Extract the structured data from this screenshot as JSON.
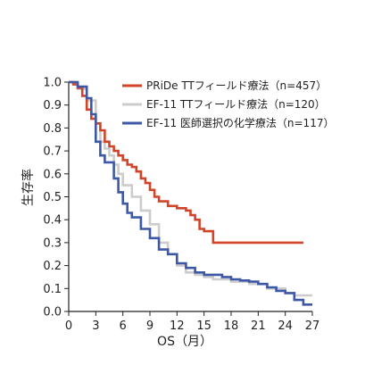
{
  "chart_data": {
    "type": "line",
    "xlabel": "OS（月）",
    "ylabel": "生存率",
    "xlim": [
      0,
      27
    ],
    "ylim": [
      0,
      1.0
    ],
    "x_ticks": [
      "0",
      "3",
      "6",
      "9",
      "12",
      "15",
      "18",
      "21",
      "24",
      "27"
    ],
    "y_ticks": [
      "0.0",
      "0.1",
      "0.2",
      "0.3",
      "0.4",
      "0.5",
      "0.6",
      "0.7",
      "0.8",
      "0.9",
      "1.0"
    ],
    "grid": false,
    "legend_position": "top-right",
    "series": [
      {
        "name": "PRiDe TTフィールド療法（n=457）",
        "color": "#d2442a",
        "points": [
          [
            0,
            1.0
          ],
          [
            0.5,
            0.99
          ],
          [
            1,
            0.975
          ],
          [
            1.5,
            0.94
          ],
          [
            2,
            0.88
          ],
          [
            2.5,
            0.84
          ],
          [
            3,
            0.82
          ],
          [
            3.5,
            0.79
          ],
          [
            4,
            0.74
          ],
          [
            4.5,
            0.72
          ],
          [
            5,
            0.7
          ],
          [
            5.5,
            0.68
          ],
          [
            6,
            0.66
          ],
          [
            6.5,
            0.64
          ],
          [
            7,
            0.63
          ],
          [
            7.5,
            0.61
          ],
          [
            8,
            0.58
          ],
          [
            8.5,
            0.56
          ],
          [
            9,
            0.53
          ],
          [
            9.5,
            0.5
          ],
          [
            10,
            0.48
          ],
          [
            11,
            0.46
          ],
          [
            12,
            0.45
          ],
          [
            13,
            0.44
          ],
          [
            13.5,
            0.42
          ],
          [
            14,
            0.4
          ],
          [
            14.5,
            0.36
          ],
          [
            15,
            0.35
          ],
          [
            16,
            0.3
          ],
          [
            20,
            0.3
          ],
          [
            26,
            0.3
          ]
        ]
      },
      {
        "name": "EF-11 TTフィールド療法（n=120）",
        "color": "#cccccc",
        "points": [
          [
            0,
            1.0
          ],
          [
            1,
            0.97
          ],
          [
            2,
            0.92
          ],
          [
            3,
            0.82
          ],
          [
            3.5,
            0.74
          ],
          [
            4,
            0.71
          ],
          [
            4.5,
            0.68
          ],
          [
            5,
            0.64
          ],
          [
            5.5,
            0.6
          ],
          [
            6,
            0.55
          ],
          [
            7,
            0.5
          ],
          [
            8,
            0.44
          ],
          [
            9,
            0.38
          ],
          [
            10,
            0.3
          ],
          [
            11,
            0.25
          ],
          [
            12,
            0.2
          ],
          [
            13,
            0.17
          ],
          [
            14,
            0.16
          ],
          [
            15,
            0.15
          ],
          [
            16,
            0.14
          ],
          [
            18,
            0.13
          ],
          [
            20,
            0.12
          ],
          [
            22,
            0.1
          ],
          [
            24,
            0.08
          ],
          [
            25,
            0.07
          ],
          [
            26,
            0.07
          ],
          [
            27,
            0.07
          ]
        ]
      },
      {
        "name": "EF-11 医師選択の化学療法（n=117）",
        "color": "#3d58a6",
        "points": [
          [
            0,
            1.0
          ],
          [
            1,
            0.98
          ],
          [
            2,
            0.93
          ],
          [
            2.5,
            0.86
          ],
          [
            3,
            0.74
          ],
          [
            3.5,
            0.68
          ],
          [
            4,
            0.65
          ],
          [
            5,
            0.58
          ],
          [
            5.5,
            0.52
          ],
          [
            6,
            0.47
          ],
          [
            6.5,
            0.43
          ],
          [
            7,
            0.41
          ],
          [
            8,
            0.36
          ],
          [
            9,
            0.32
          ],
          [
            10,
            0.27
          ],
          [
            11,
            0.25
          ],
          [
            12,
            0.21
          ],
          [
            13,
            0.19
          ],
          [
            14,
            0.17
          ],
          [
            15,
            0.16
          ],
          [
            16,
            0.16
          ],
          [
            17,
            0.15
          ],
          [
            18,
            0.14
          ],
          [
            19,
            0.135
          ],
          [
            20,
            0.13
          ],
          [
            21,
            0.12
          ],
          [
            22,
            0.105
          ],
          [
            23,
            0.09
          ],
          [
            24,
            0.08
          ],
          [
            25,
            0.05
          ],
          [
            26,
            0.03
          ],
          [
            27,
            0.03
          ]
        ]
      }
    ]
  }
}
